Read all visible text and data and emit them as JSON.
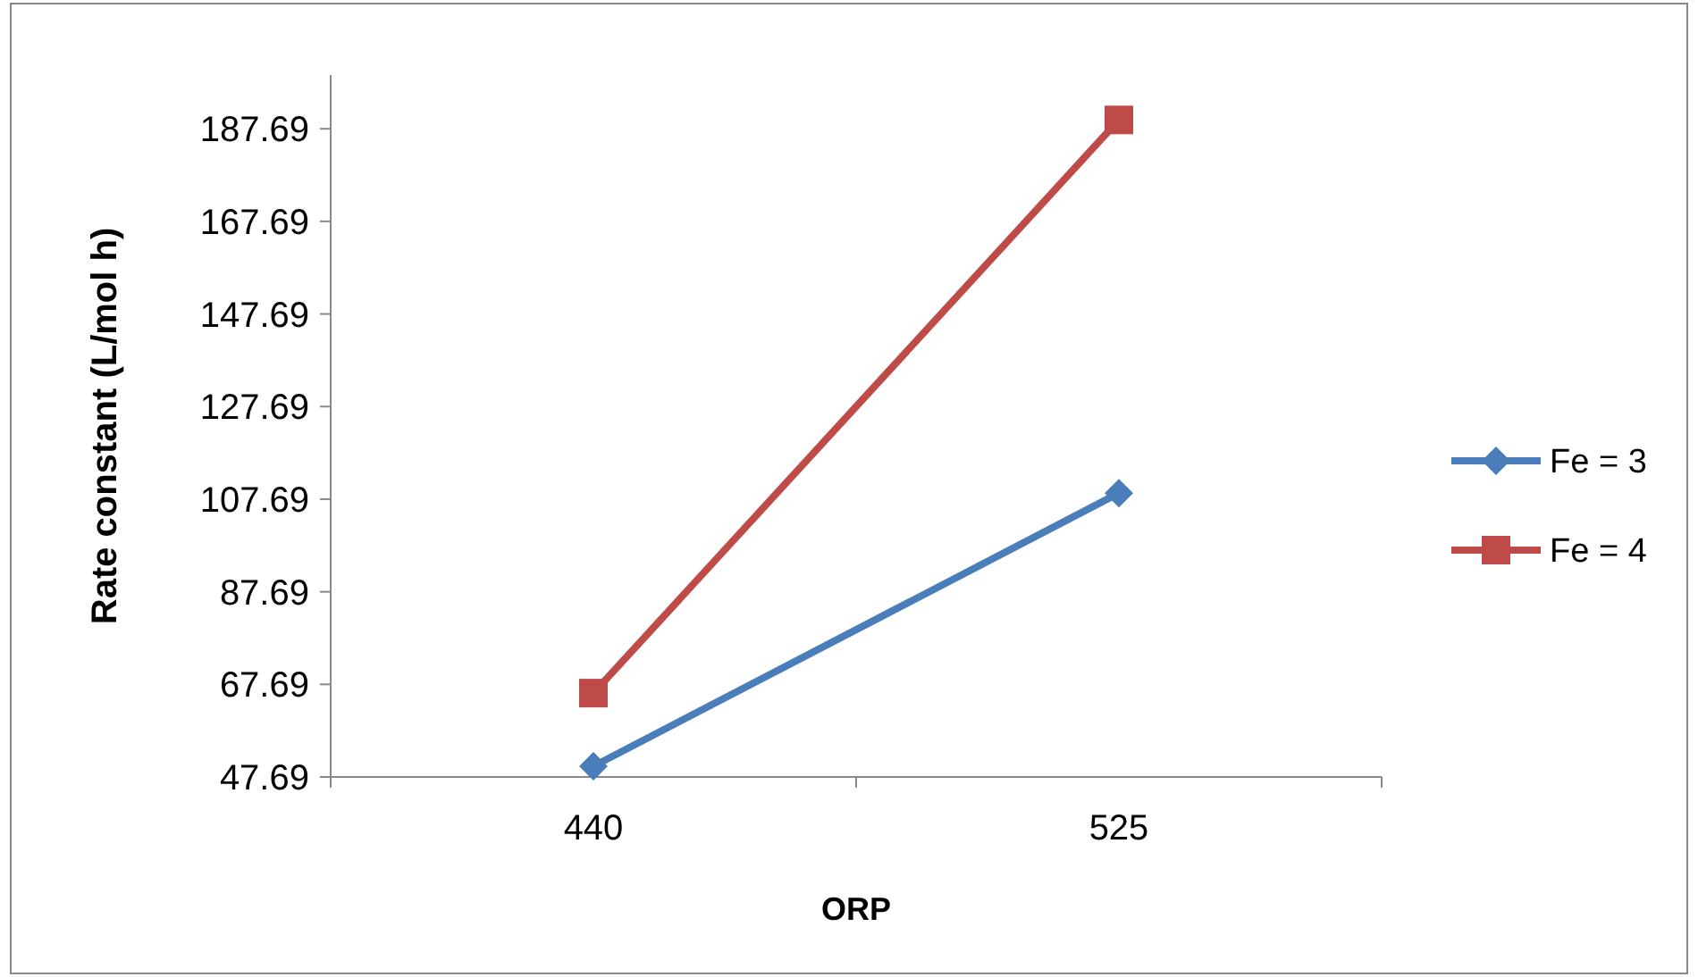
{
  "chart_data": {
    "type": "line",
    "xlabel": "ORP",
    "ylabel": "Rate constant (L/mol h)",
    "categories": [
      "440",
      "525"
    ],
    "series": [
      {
        "name": "Fe = 3",
        "color": "#4a7ebb",
        "values": [
          50.0,
          109.0
        ],
        "marker": "diamond"
      },
      {
        "name": "Fe = 4",
        "color": "#be4b48",
        "values": [
          65.8,
          189.6
        ],
        "marker": "square"
      }
    ],
    "ylim": [
      47.69,
      199.3
    ],
    "yticks": [
      {
        "value": 47.69,
        "label": "47.69"
      },
      {
        "value": 67.69,
        "label": "67.69"
      },
      {
        "value": 87.69,
        "label": "87.69"
      },
      {
        "value": 107.69,
        "label": "107.69"
      },
      {
        "value": 127.69,
        "label": "127.69"
      },
      {
        "value": 147.69,
        "label": "147.69"
      },
      {
        "value": 167.69,
        "label": "167.69"
      },
      {
        "value": 187.69,
        "label": "187.69"
      }
    ],
    "grid": false,
    "legend": "right"
  }
}
